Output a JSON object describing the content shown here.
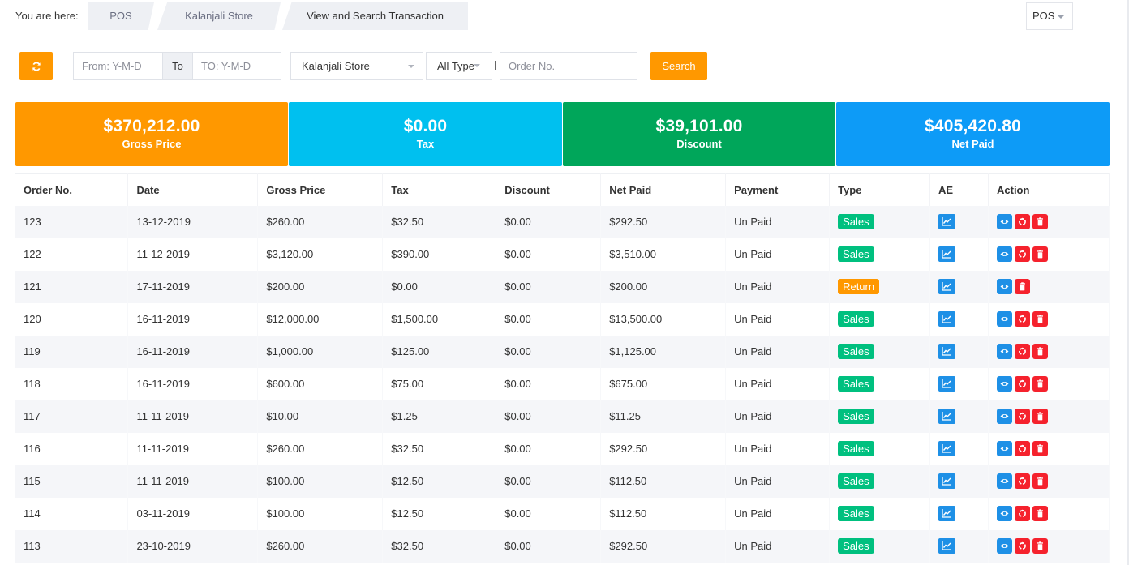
{
  "breadcrumb": {
    "label": "You are here:",
    "items": [
      "POS",
      "Kalanjali Store",
      "View and Search Transaction"
    ]
  },
  "module_select": {
    "value": "POS"
  },
  "filters": {
    "from_placeholder": "From: Y-M-D",
    "to_label": "To",
    "to_placeholder": "TO: Y-M-D",
    "store_value": "Kalanjali Store",
    "type_value": "All Type",
    "order_placeholder": "Order No.",
    "search_label": "Search"
  },
  "summary": {
    "gross": {
      "value": "$370,212.00",
      "label": "Gross Price",
      "color": "#ff9800"
    },
    "tax": {
      "value": "$0.00",
      "label": "Tax",
      "color": "#00c0ef"
    },
    "discount": {
      "value": "$39,101.00",
      "label": "Discount",
      "color": "#00a65a"
    },
    "net": {
      "value": "$405,420.80",
      "label": "Net Paid",
      "color": "#0d9bf7"
    }
  },
  "table": {
    "headers": [
      "Order No.",
      "Date",
      "Gross Price",
      "Tax",
      "Discount",
      "Net Paid",
      "Payment",
      "Type",
      "AE",
      "Action"
    ],
    "rows": [
      {
        "order": "123",
        "date": "13-12-2019",
        "gross": "$260.00",
        "tax": "$32.50",
        "discount": "$0.00",
        "net": "$292.50",
        "payment": "Un Paid",
        "type": "Sales"
      },
      {
        "order": "122",
        "date": "11-12-2019",
        "gross": "$3,120.00",
        "tax": "$390.00",
        "discount": "$0.00",
        "net": "$3,510.00",
        "payment": "Un Paid",
        "type": "Sales"
      },
      {
        "order": "121",
        "date": "17-11-2019",
        "gross": "$200.00",
        "tax": "$0.00",
        "discount": "$0.00",
        "net": "$200.00",
        "payment": "Un Paid",
        "type": "Return"
      },
      {
        "order": "120",
        "date": "16-11-2019",
        "gross": "$12,000.00",
        "tax": "$1,500.00",
        "discount": "$0.00",
        "net": "$13,500.00",
        "payment": "Un Paid",
        "type": "Sales"
      },
      {
        "order": "119",
        "date": "16-11-2019",
        "gross": "$1,000.00",
        "tax": "$125.00",
        "discount": "$0.00",
        "net": "$1,125.00",
        "payment": "Un Paid",
        "type": "Sales"
      },
      {
        "order": "118",
        "date": "16-11-2019",
        "gross": "$600.00",
        "tax": "$75.00",
        "discount": "$0.00",
        "net": "$675.00",
        "payment": "Un Paid",
        "type": "Sales"
      },
      {
        "order": "117",
        "date": "11-11-2019",
        "gross": "$10.00",
        "tax": "$1.25",
        "discount": "$0.00",
        "net": "$11.25",
        "payment": "Un Paid",
        "type": "Sales"
      },
      {
        "order": "116",
        "date": "11-11-2019",
        "gross": "$260.00",
        "tax": "$32.50",
        "discount": "$0.00",
        "net": "$292.50",
        "payment": "Un Paid",
        "type": "Sales"
      },
      {
        "order": "115",
        "date": "11-11-2019",
        "gross": "$100.00",
        "tax": "$12.50",
        "discount": "$0.00",
        "net": "$112.50",
        "payment": "Un Paid",
        "type": "Sales"
      },
      {
        "order": "114",
        "date": "03-11-2019",
        "gross": "$100.00",
        "tax": "$12.50",
        "discount": "$0.00",
        "net": "$112.50",
        "payment": "Un Paid",
        "type": "Sales"
      },
      {
        "order": "113",
        "date": "23-10-2019",
        "gross": "$260.00",
        "tax": "$32.50",
        "discount": "$0.00",
        "net": "$292.50",
        "payment": "Un Paid",
        "type": "Sales"
      }
    ]
  },
  "icons": {
    "refresh": "refresh-icon",
    "ae": "line-chart-icon",
    "view": "eye-icon",
    "return": "recycle-icon",
    "delete": "trash-icon"
  }
}
